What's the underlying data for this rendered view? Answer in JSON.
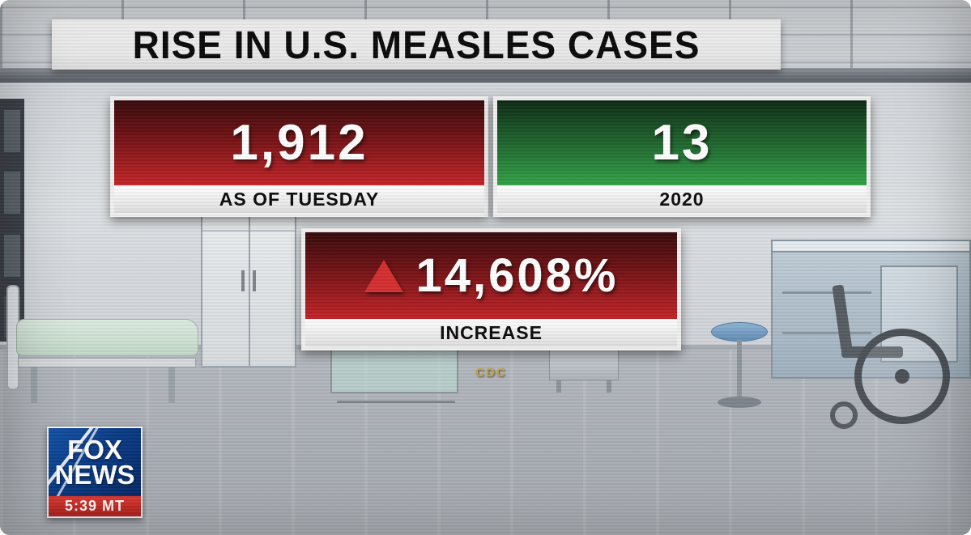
{
  "banner": {
    "title": "RISE IN U.S. MEASLES CASES"
  },
  "stats": {
    "current": {
      "value": "1,912",
      "label": "AS OF TUESDAY",
      "color": "#c22327"
    },
    "previous": {
      "value": "13",
      "label": "2020",
      "color": "#31a047"
    },
    "increase": {
      "value": "14,608%",
      "label": "INCREASE",
      "color": "#c22327",
      "icon": "up-triangle-icon"
    }
  },
  "source": {
    "label": "CDC",
    "color": "#c9a43a"
  },
  "logo": {
    "line1": "FOX",
    "line2": "NEWS",
    "time": "5:39 MT",
    "brand_blue": "#0a3a85",
    "brand_red": "#c8281f"
  },
  "chart_data": {
    "type": "table",
    "title": "RISE IN U.S. MEASLES CASES",
    "categories": [
      "AS OF TUESDAY",
      "2020"
    ],
    "values": [
      1912,
      13
    ],
    "series": [
      {
        "name": "U.S. measles cases",
        "values": [
          1912,
          13
        ]
      }
    ],
    "annotations": [
      "▲ 14,608% INCREASE"
    ],
    "source": "CDC",
    "legend": "none",
    "colors": {
      "current": "#c22327",
      "previous": "#31a047"
    }
  }
}
